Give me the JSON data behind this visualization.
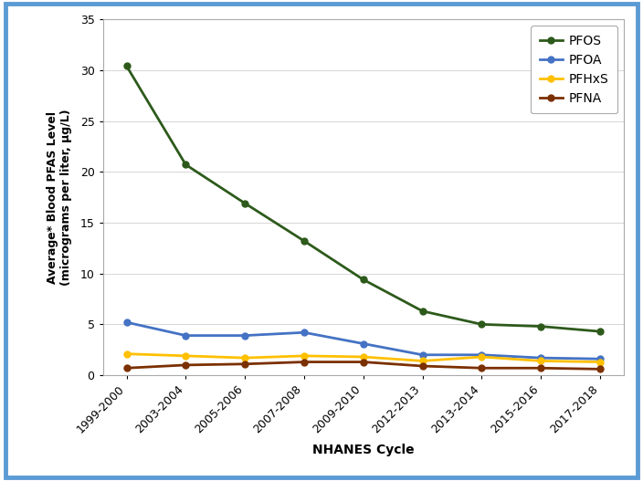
{
  "x_labels": [
    "1999-2000",
    "2003-2004",
    "2005-2006",
    "2007-2008",
    "2009-2010",
    "2012-2013",
    "2013-2014",
    "2015-2016",
    "2017-2018"
  ],
  "series": {
    "PFOS": [
      30.4,
      20.7,
      16.9,
      13.2,
      9.4,
      6.3,
      5.0,
      4.8,
      4.3
    ],
    "PFOA": [
      5.2,
      3.9,
      3.9,
      4.2,
      3.1,
      2.0,
      2.0,
      1.7,
      1.6
    ],
    "PFHxS": [
      2.1,
      1.9,
      1.7,
      1.9,
      1.8,
      1.4,
      1.8,
      1.4,
      1.3
    ],
    "PFNA": [
      0.7,
      1.0,
      1.1,
      1.3,
      1.3,
      0.9,
      0.7,
      0.7,
      0.6
    ]
  },
  "colors": {
    "PFOS": "#2d5a1b",
    "PFOA": "#4472c4",
    "PFHxS": "#ffc000",
    "PFNA": "#7b3000"
  },
  "ylabel_line1": "Average* Blood PFAS Level",
  "ylabel_line2": "(micrograms per liter, μg/L)",
  "xlabel": "NHANES Cycle",
  "ylim": [
    0,
    35
  ],
  "yticks": [
    0,
    5,
    10,
    15,
    20,
    25,
    30,
    35
  ],
  "background_color": "#ffffff",
  "border_color": "#5b9bd5",
  "marker": "o",
  "linewidth": 2.0,
  "markersize": 5
}
